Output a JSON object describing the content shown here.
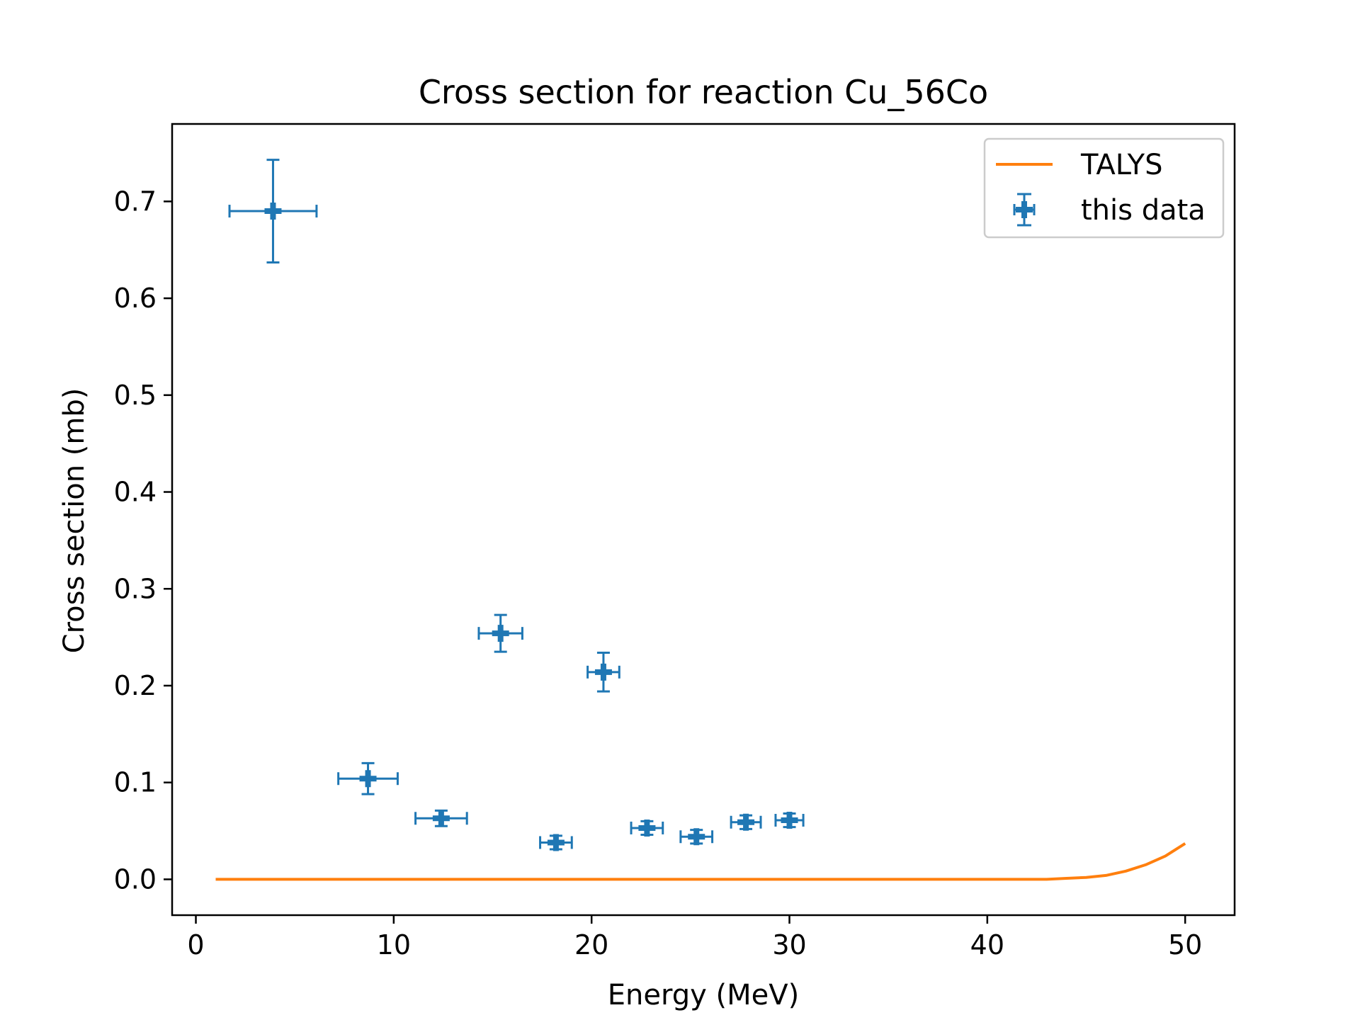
{
  "chart_data": {
    "type": "scatter",
    "title": "Cross section for reaction Cu_56Co",
    "xlabel": "Energy (MeV)",
    "ylabel": "Cross section (mb)",
    "xlim": [
      -1.2,
      52.5
    ],
    "ylim": [
      -0.037,
      0.78
    ],
    "xticks": [
      0,
      10,
      20,
      30,
      40,
      50
    ],
    "yticks": [
      0.0,
      0.1,
      0.2,
      0.3,
      0.4,
      0.5,
      0.6,
      0.7
    ],
    "xtick_labels": [
      "0",
      "10",
      "20",
      "30",
      "40",
      "50"
    ],
    "ytick_labels": [
      "0.0",
      "0.1",
      "0.2",
      "0.3",
      "0.4",
      "0.5",
      "0.6",
      "0.7"
    ],
    "grid": false,
    "legend": {
      "placement": "top-right",
      "entries": [
        {
          "label": "TALYS",
          "kind": "line",
          "color": "#ff7f0e"
        },
        {
          "label": "this data",
          "kind": "errorbar",
          "color": "#1f77b4"
        }
      ]
    },
    "series": [
      {
        "name": "TALYS",
        "kind": "line",
        "color": "#ff7f0e",
        "x": [
          1,
          5,
          10,
          15,
          20,
          25,
          30,
          35,
          40,
          43,
          44,
          45,
          46,
          47,
          48,
          49,
          50
        ],
        "y": [
          0,
          0,
          0,
          0,
          0,
          0,
          0,
          0,
          0,
          0,
          0.001,
          0.002,
          0.004,
          0.0085,
          0.015,
          0.024,
          0.037
        ]
      },
      {
        "name": "this data",
        "kind": "errorbar",
        "color": "#1f77b4",
        "x": [
          3.9,
          8.7,
          12.4,
          15.4,
          18.2,
          20.6,
          22.8,
          25.3,
          27.8,
          30.0
        ],
        "y": [
          0.69,
          0.104,
          0.063,
          0.254,
          0.038,
          0.214,
          0.053,
          0.044,
          0.059,
          0.061
        ],
        "xerr": [
          2.2,
          1.5,
          1.3,
          1.1,
          0.8,
          0.8,
          0.8,
          0.8,
          0.75,
          0.7
        ],
        "yerr": [
          0.053,
          0.016,
          0.008,
          0.019,
          0.007,
          0.02,
          0.007,
          0.007,
          0.007,
          0.007
        ]
      }
    ]
  }
}
